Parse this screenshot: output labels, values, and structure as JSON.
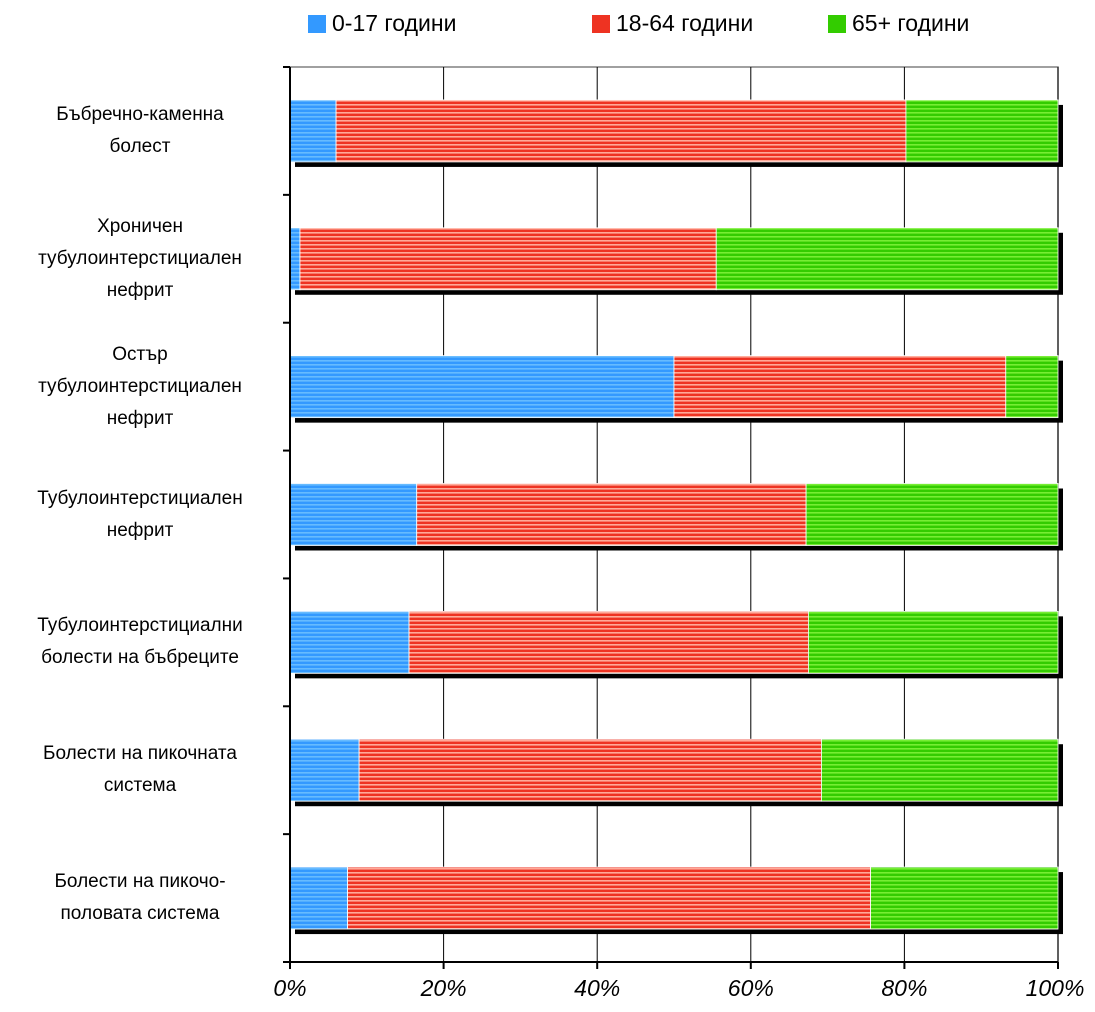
{
  "chart_data": {
    "type": "bar",
    "orientation": "horizontal",
    "stacked": "percent",
    "categories": [
      "Бъбречно-каменна болест",
      "Хроничен тубулоинтерстициален нефрит",
      "Остър тубулоинтерстициален нефрит",
      "Тубулоинтерстициален нефрит",
      "Тубулоинтерстициални болести на бъбреците",
      "Болести на пикочната система",
      "Болести на пикочо-половата система"
    ],
    "category_lines": [
      [
        "Бъбречно-каменна",
        "болест"
      ],
      [
        "Хроничен",
        "тубулоинтерстициален",
        "нефрит"
      ],
      [
        "Остър",
        "тубулоинтерстициален",
        "нефрит"
      ],
      [
        "Тубулоинтерстициален",
        "нефрит"
      ],
      [
        "Тубулоинтерстициални",
        "болести на бъбреците"
      ],
      [
        "Болести на пикочната",
        "система"
      ],
      [
        "Болести на пикочо-",
        "половата система"
      ]
    ],
    "series": [
      {
        "name": "0-17 години",
        "color": "#3399ff",
        "stripe": "#66bbff",
        "values": [
          6,
          1.3,
          50,
          16.5,
          15.5,
          9,
          7.5
        ]
      },
      {
        "name": "18-64 години",
        "color": "#ee3322",
        "stripe": "#ffaa99",
        "values": [
          74.2,
          54.2,
          43.2,
          50.7,
          52,
          60.2,
          68.1
        ]
      },
      {
        "name": "65+ години",
        "color": "#33cc00",
        "stripe": "#77ee33",
        "values": [
          19.8,
          44.5,
          6.8,
          32.8,
          32.5,
          30.8,
          24.4
        ]
      }
    ],
    "x_ticks": [
      "0%",
      "20%",
      "40%",
      "60%",
      "80%",
      "100%"
    ],
    "xlim": [
      0,
      100
    ],
    "grid": "vertical",
    "legend_position": "top",
    "title": "",
    "xlabel": "",
    "ylabel": ""
  }
}
